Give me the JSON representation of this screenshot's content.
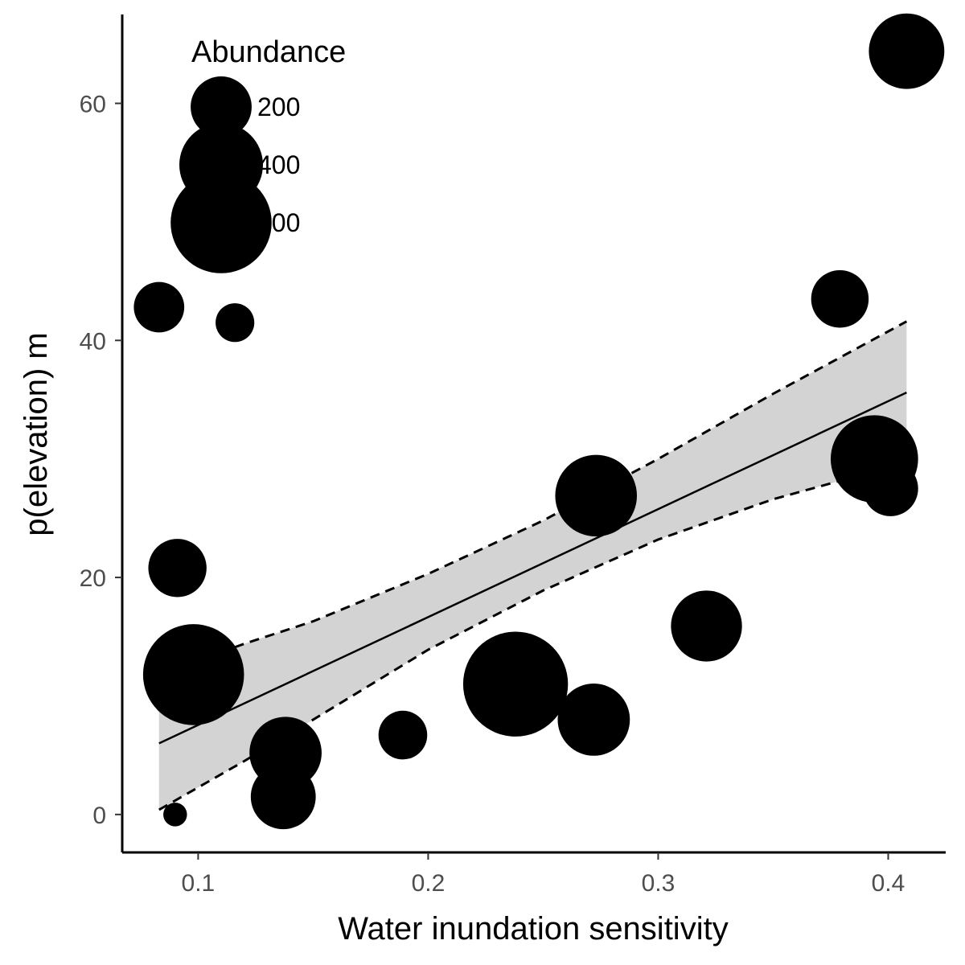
{
  "chart_data": {
    "type": "scatter",
    "xlabel": "Water inundation sensitivity",
    "ylabel": "p(elevation) m",
    "xlim": [
      0.067,
      0.425
    ],
    "ylim": [
      -3.2,
      67.5
    ],
    "x_ticks": [
      0.1,
      0.2,
      0.3,
      0.4
    ],
    "x_tick_labels": [
      "0.1",
      "0.2",
      "0.3",
      "0.4"
    ],
    "y_ticks": [
      0,
      20,
      40,
      60
    ],
    "y_tick_labels": [
      "0",
      "20",
      "40",
      "60"
    ],
    "grid": false,
    "legend": {
      "title": "Abundance",
      "placement": "top-left",
      "entries": [
        {
          "label": "200",
          "value": 200
        },
        {
          "label": "400",
          "value": 400
        },
        {
          "label": "600",
          "value": 600
        }
      ]
    },
    "points": [
      {
        "x": 0.083,
        "y": 42.8,
        "abundance": 130
      },
      {
        "x": 0.09,
        "y": 0.0,
        "abundance": 20
      },
      {
        "x": 0.091,
        "y": 20.8,
        "abundance": 180
      },
      {
        "x": 0.098,
        "y": 11.8,
        "abundance": 600
      },
      {
        "x": 0.116,
        "y": 41.5,
        "abundance": 70
      },
      {
        "x": 0.137,
        "y": 1.5,
        "abundance": 230
      },
      {
        "x": 0.138,
        "y": 5.2,
        "abundance": 290
      },
      {
        "x": 0.189,
        "y": 6.7,
        "abundance": 120
      },
      {
        "x": 0.238,
        "y": 11.0,
        "abundance": 650
      },
      {
        "x": 0.272,
        "y": 8.0,
        "abundance": 290
      },
      {
        "x": 0.273,
        "y": 26.9,
        "abundance": 380
      },
      {
        "x": 0.321,
        "y": 15.9,
        "abundance": 280
      },
      {
        "x": 0.379,
        "y": 43.5,
        "abundance": 175
      },
      {
        "x": 0.394,
        "y": 30.0,
        "abundance": 440
      },
      {
        "x": 0.401,
        "y": 27.5,
        "abundance": 160
      },
      {
        "x": 0.408,
        "y": 64.4,
        "abundance": 320
      }
    ],
    "fit_line": {
      "x": [
        0.083,
        0.408
      ],
      "y": [
        6.0,
        35.6
      ]
    },
    "confidence_band": {
      "x": [
        0.083,
        0.12,
        0.15,
        0.2,
        0.25,
        0.3,
        0.35,
        0.408
      ],
      "upper": [
        11.8,
        14.4,
        16.3,
        20.3,
        24.8,
        30.0,
        35.5,
        41.6
      ],
      "lower": [
        0.4,
        4.5,
        8.0,
        13.9,
        18.9,
        23.2,
        26.6,
        29.7
      ]
    },
    "colors": {
      "points": "#000000",
      "band": "#d3d3d3",
      "line": "#000000"
    }
  }
}
